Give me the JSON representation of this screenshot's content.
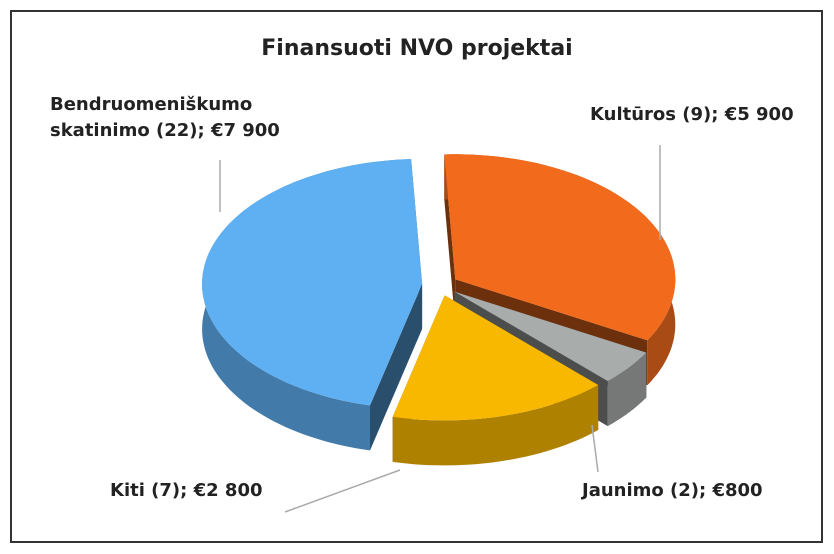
{
  "chart_data": {
    "type": "pie3d",
    "title": "Finansuoti NVO projektai",
    "labels": [
      "Kultūros (9); €5 900",
      "Jaunimo (2); €800",
      "Kiti (7); €2 800",
      "Bendruomeniškumo skatinimo (22); €7 900"
    ],
    "values": [
      5900,
      800,
      2800,
      7900
    ],
    "colors": [
      "#f26b1d",
      "#a8acab",
      "#f9b800",
      "#5eb0f2"
    ]
  }
}
